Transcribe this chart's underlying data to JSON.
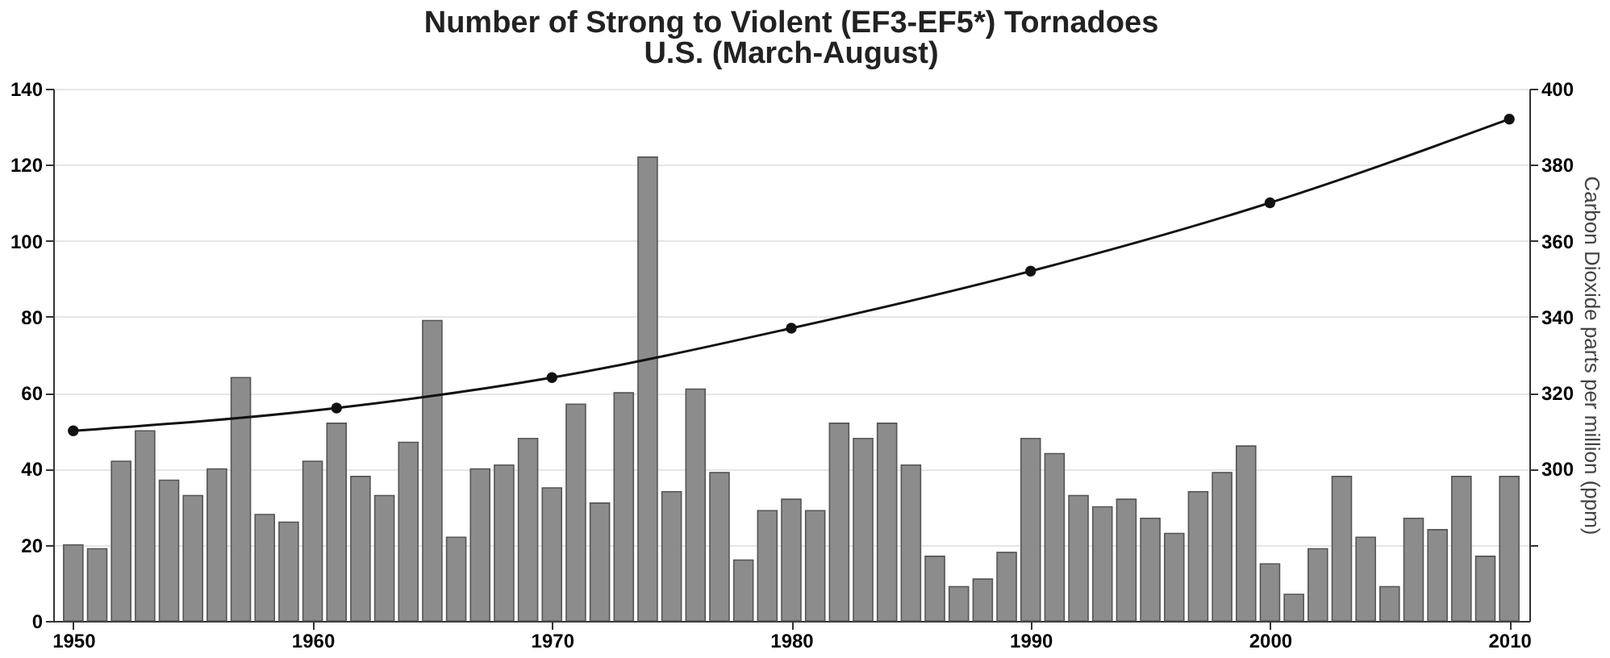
{
  "chart_data": {
    "type": "bar",
    "title": "Number of Strong to Violent (EF3-EF5*) Tornadoes",
    "subtitle": "U.S. (March-August)",
    "y2label": "Carbon Dioxide parts per million (ppm)",
    "x": [
      1950,
      1951,
      1952,
      1953,
      1954,
      1955,
      1956,
      1957,
      1958,
      1959,
      1960,
      1961,
      1962,
      1963,
      1964,
      1965,
      1966,
      1967,
      1968,
      1969,
      1970,
      1971,
      1972,
      1973,
      1974,
      1975,
      1976,
      1977,
      1978,
      1979,
      1980,
      1981,
      1982,
      1983,
      1984,
      1985,
      1986,
      1987,
      1988,
      1989,
      1990,
      1991,
      1992,
      1993,
      1994,
      1995,
      1996,
      1997,
      1998,
      1999,
      2000,
      2001,
      2002,
      2003,
      2004,
      2005,
      2006,
      2007,
      2008,
      2009,
      2010
    ],
    "series": [
      {
        "color": "#8c8c8c",
        "values": [
          20,
          19,
          42,
          50,
          37,
          33,
          40,
          64,
          28,
          26,
          42,
          52,
          38,
          33,
          47,
          79,
          22,
          40,
          41,
          48,
          35,
          57,
          31,
          60,
          122,
          34,
          61,
          39,
          16,
          29,
          32,
          29,
          52,
          48,
          52,
          41,
          17,
          9,
          11,
          18,
          48,
          44,
          33,
          30,
          32,
          27,
          23,
          34,
          39,
          46,
          15,
          7,
          19,
          38,
          22,
          9,
          27,
          24,
          38,
          17,
          38
        ]
      },
      {
        "type": "line",
        "axis": "y2",
        "color": "#111111",
        "marker": "circle",
        "line_style": "solid",
        "x": [
          1950,
          1961,
          1970,
          1980,
          1990,
          2000,
          2010
        ],
        "values": [
          310,
          316,
          324,
          337,
          352,
          370,
          392
        ]
      }
    ],
    "xlim": [
      1949.5,
      2010.5
    ],
    "xticks": [
      1950,
      1960,
      1970,
      1980,
      1990,
      2000,
      2010
    ],
    "ylim": [
      0,
      140
    ],
    "yticks": [
      0,
      20,
      40,
      60,
      80,
      100,
      120,
      140
    ],
    "y2lim": [
      260,
      400
    ],
    "y2ticks": [
      {
        "value": 280,
        "label": null
      },
      300,
      320,
      340,
      360,
      380,
      400
    ],
    "grid": "y"
  }
}
